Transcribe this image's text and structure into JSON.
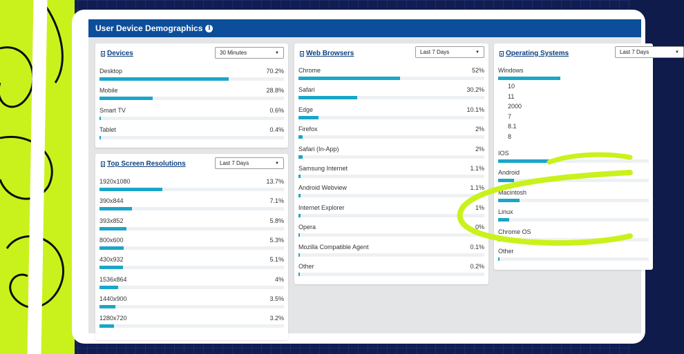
{
  "dashboard": {
    "title": "User Device Demographics"
  },
  "colors": {
    "header": "#0c4e9a",
    "bar": "#1aa6c9",
    "accent_lime": "#c9f21c"
  },
  "devices": {
    "title": "Devices",
    "period": "30 Minutes",
    "rows": [
      {
        "label": "Desktop",
        "value": "70.2%",
        "pct": 70.2
      },
      {
        "label": "Mobile",
        "value": "28.8%",
        "pct": 28.8
      },
      {
        "label": "Smart TV",
        "value": "0.6%",
        "pct": 0.6
      },
      {
        "label": "Tablet",
        "value": "0.4%",
        "pct": 0.4
      }
    ]
  },
  "resolutions": {
    "title": "Top Screen Resolutions",
    "period": "Last 7 Days",
    "rows": [
      {
        "label": "1920x1080",
        "value": "13.7%",
        "pct": 13.7
      },
      {
        "label": "390x844",
        "value": "7.1%",
        "pct": 7.1
      },
      {
        "label": "393x852",
        "value": "5.8%",
        "pct": 5.8
      },
      {
        "label": "800x600",
        "value": "5.3%",
        "pct": 5.3
      },
      {
        "label": "430x932",
        "value": "5.1%",
        "pct": 5.1
      },
      {
        "label": "1536x864",
        "value": "4%",
        "pct": 4
      },
      {
        "label": "1440x900",
        "value": "3.5%",
        "pct": 3.5
      },
      {
        "label": "1280x720",
        "value": "3.2%",
        "pct": 3.2
      }
    ]
  },
  "browsers": {
    "title": "Web Browsers",
    "period": "Last 7 Days",
    "rows": [
      {
        "label": "Chrome",
        "value": "52%",
        "pct": 52
      },
      {
        "label": "Safari",
        "value": "30.2%",
        "pct": 30.2
      },
      {
        "label": "Edge",
        "value": "10.1%",
        "pct": 10.1
      },
      {
        "label": "Firefox",
        "value": "2%",
        "pct": 2
      },
      {
        "label": "Safari (In-App)",
        "value": "2%",
        "pct": 2
      },
      {
        "label": "Samsung Internet",
        "value": "1.1%",
        "pct": 1.1
      },
      {
        "label": "Android Webview",
        "value": "1.1%",
        "pct": 1.1
      },
      {
        "label": "Internet Explorer",
        "value": "1%",
        "pct": 1
      },
      {
        "label": "Opera",
        "value": "0%",
        "pct": 0
      },
      {
        "label": "Mozilla Compatible Agent",
        "value": "0.1%",
        "pct": 0.1
      },
      {
        "label": "Other",
        "value": "0.2%",
        "pct": 0.2
      }
    ]
  },
  "os": {
    "title": "Operating Systems",
    "period": "Last 7 Days",
    "windows_label": "Windows",
    "windows_pct": 46,
    "windows_versions": [
      "10",
      "11",
      "2000",
      "7",
      "8.1",
      "8"
    ],
    "rows": [
      {
        "label": "IOS",
        "pct": 40
      },
      {
        "label": "Android",
        "pct": 12
      },
      {
        "label": "Macintosh",
        "pct": 16
      },
      {
        "label": "Linux",
        "pct": 8
      },
      {
        "label": "Chrome OS",
        "pct": 1
      },
      {
        "label": "Other",
        "pct": 0.3
      }
    ]
  }
}
